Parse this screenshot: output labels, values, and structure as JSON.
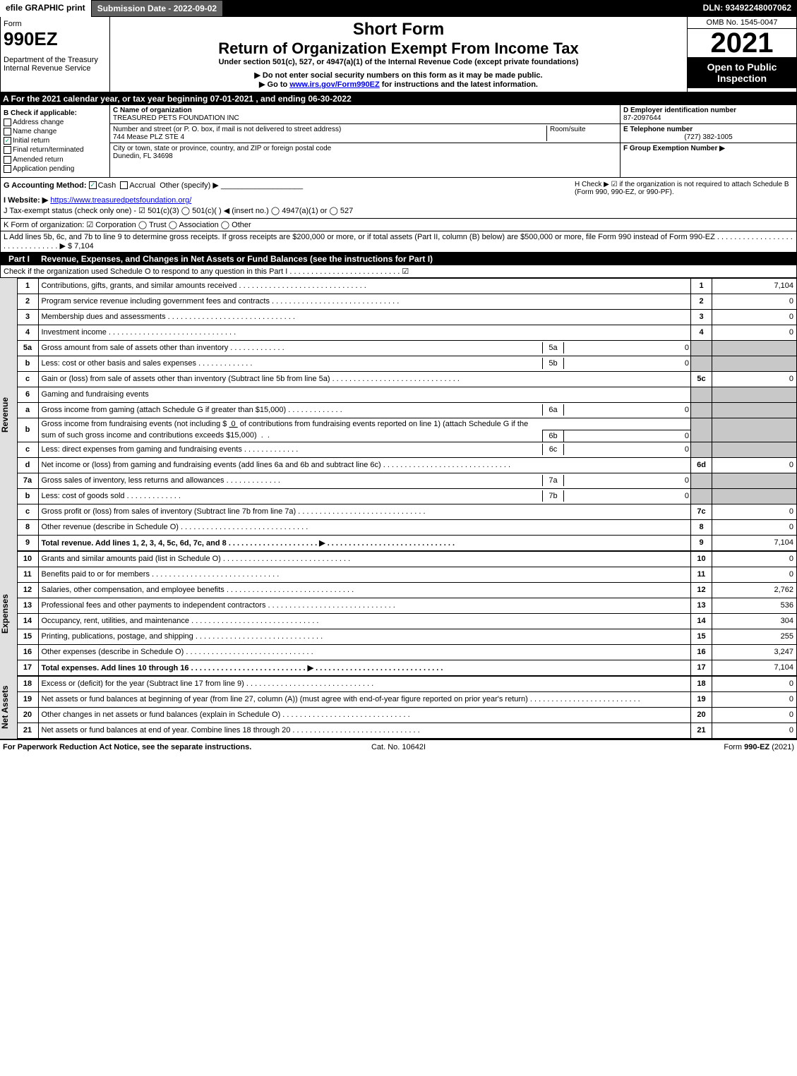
{
  "topbar": {
    "efile": "efile GRAPHIC print",
    "subdate": "Submission Date - 2022-09-02",
    "dln": "DLN: 93492248007062"
  },
  "header": {
    "form": "Form",
    "formnum": "990EZ",
    "dept": "Department of the Treasury\nInternal Revenue Service",
    "short": "Short Form",
    "title": "Return of Organization Exempt From Income Tax",
    "subtitle": "Under section 501(c), 527, or 4947(a)(1) of the Internal Revenue Code (except private foundations)",
    "instr1": "▶ Do not enter social security numbers on this form as it may be made public.",
    "instr2": "▶ Go to www.irs.gov/Form990EZ for instructions and the latest information.",
    "omb": "OMB No. 1545-0047",
    "year": "2021",
    "open": "Open to Public Inspection"
  },
  "sectionA": "A  For the 2021 calendar year, or tax year beginning 07-01-2021 , and ending 06-30-2022",
  "B": {
    "label": "B  Check if applicable:",
    "items": [
      {
        "label": "Address change",
        "checked": false
      },
      {
        "label": "Name change",
        "checked": false
      },
      {
        "label": "Initial return",
        "checked": true
      },
      {
        "label": "Final return/terminated",
        "checked": false
      },
      {
        "label": "Amended return",
        "checked": false
      },
      {
        "label": "Application pending",
        "checked": false
      }
    ]
  },
  "C": {
    "nameLabel": "C Name of organization",
    "name": "TREASURED PETS FOUNDATION INC",
    "addrLabel": "Number and street (or P. O. box, if mail is not delivered to street address)",
    "roomLabel": "Room/suite",
    "addr": "744 Mease PLZ STE 4",
    "cityLabel": "City or town, state or province, country, and ZIP or foreign postal code",
    "city": "Dunedin, FL  34698"
  },
  "D": {
    "label": "D Employer identification number",
    "val": "87-2097644"
  },
  "E": {
    "label": "E Telephone number",
    "val": "(727) 382-1005"
  },
  "F": {
    "label": "F Group Exemption Number  ▶",
    "val": ""
  },
  "G": {
    "label": "G Accounting Method:",
    "cash": "Cash",
    "accrual": "Accrual",
    "other": "Other (specify) ▶"
  },
  "H": {
    "text": "H  Check ▶ ☑ if the organization is not required to attach Schedule B (Form 990, 990-EZ, or 990-PF)."
  },
  "I": {
    "label": "I Website: ▶",
    "url": "https://www.treasuredpetsfoundation.org/"
  },
  "J": {
    "label": "J Tax-exempt status (check only one) - ☑ 501(c)(3)  ◯ 501(c)( ) ◀ (insert no.)  ◯ 4947(a)(1) or  ◯ 527"
  },
  "K": {
    "label": "K Form of organization:  ☑ Corporation   ◯ Trust   ◯ Association   ◯ Other"
  },
  "L": {
    "text": "L Add lines 5b, 6c, and 7b to line 9 to determine gross receipts. If gross receipts are $200,000 or more, or if total assets (Part II, column (B) below) are $500,000 or more, file Form 990 instead of Form 990-EZ . . . . . . . . . . . . . . . . . . . . . . . . . . . . . . .  ▶ $ 7,104"
  },
  "partI": {
    "label": "Part I",
    "title": "Revenue, Expenses, and Changes in Net Assets or Fund Balances (see the instructions for Part I)",
    "check": "Check if the organization used Schedule O to respond to any question in this Part I . . . . . . . . . . . . . . . . . . . . . . . . . .  ☑"
  },
  "revenueLabel": "Revenue",
  "expensesLabel": "Expenses",
  "netassetsLabel": "Net Assets",
  "lines": {
    "l1": {
      "n": "1",
      "d": "Contributions, gifts, grants, and similar amounts received",
      "rn": "1",
      "amt": "7,104"
    },
    "l2": {
      "n": "2",
      "d": "Program service revenue including government fees and contracts",
      "rn": "2",
      "amt": "0"
    },
    "l3": {
      "n": "3",
      "d": "Membership dues and assessments",
      "rn": "3",
      "amt": "0"
    },
    "l4": {
      "n": "4",
      "d": "Investment income",
      "rn": "4",
      "amt": "0"
    },
    "l5a": {
      "n": "5a",
      "d": "Gross amount from sale of assets other than inventory",
      "sn": "5a",
      "samt": "0"
    },
    "l5b": {
      "n": "b",
      "d": "Less: cost or other basis and sales expenses",
      "sn": "5b",
      "samt": "0"
    },
    "l5c": {
      "n": "c",
      "d": "Gain or (loss) from sale of assets other than inventory (Subtract line 5b from line 5a)",
      "rn": "5c",
      "amt": "0"
    },
    "l6": {
      "n": "6",
      "d": "Gaming and fundraising events"
    },
    "l6a": {
      "n": "a",
      "d": "Gross income from gaming (attach Schedule G if greater than $15,000)",
      "sn": "6a",
      "samt": "0"
    },
    "l6b": {
      "n": "b",
      "d": "Gross income from fundraising events (not including $ _0_ of contributions from fundraising events reported on line 1) (attach Schedule G if the sum of such gross income and contributions exceeds $15,000)",
      "sn": "6b",
      "samt": "0"
    },
    "l6c": {
      "n": "c",
      "d": "Less: direct expenses from gaming and fundraising events",
      "sn": "6c",
      "samt": "0"
    },
    "l6d": {
      "n": "d",
      "d": "Net income or (loss) from gaming and fundraising events (add lines 6a and 6b and subtract line 6c)",
      "rn": "6d",
      "amt": "0"
    },
    "l7a": {
      "n": "7a",
      "d": "Gross sales of inventory, less returns and allowances",
      "sn": "7a",
      "samt": "0"
    },
    "l7b": {
      "n": "b",
      "d": "Less: cost of goods sold",
      "sn": "7b",
      "samt": "0"
    },
    "l7c": {
      "n": "c",
      "d": "Gross profit or (loss) from sales of inventory (Subtract line 7b from line 7a)",
      "rn": "7c",
      "amt": "0"
    },
    "l8": {
      "n": "8",
      "d": "Other revenue (describe in Schedule O)",
      "rn": "8",
      "amt": "0"
    },
    "l9": {
      "n": "9",
      "d": "Total revenue. Add lines 1, 2, 3, 4, 5c, 6d, 7c, and 8  . . . . . . . . . . . . . . . . . . . . .  ▶",
      "rn": "9",
      "amt": "7,104"
    },
    "l10": {
      "n": "10",
      "d": "Grants and similar amounts paid (list in Schedule O)",
      "rn": "10",
      "amt": "0"
    },
    "l11": {
      "n": "11",
      "d": "Benefits paid to or for members",
      "rn": "11",
      "amt": "0"
    },
    "l12": {
      "n": "12",
      "d": "Salaries, other compensation, and employee benefits",
      "rn": "12",
      "amt": "2,762"
    },
    "l13": {
      "n": "13",
      "d": "Professional fees and other payments to independent contractors",
      "rn": "13",
      "amt": "536"
    },
    "l14": {
      "n": "14",
      "d": "Occupancy, rent, utilities, and maintenance",
      "rn": "14",
      "amt": "304"
    },
    "l15": {
      "n": "15",
      "d": "Printing, publications, postage, and shipping",
      "rn": "15",
      "amt": "255"
    },
    "l16": {
      "n": "16",
      "d": "Other expenses (describe in Schedule O)",
      "rn": "16",
      "amt": "3,247"
    },
    "l17": {
      "n": "17",
      "d": "Total expenses. Add lines 10 through 16  . . . . . . . . . . . . . . . . . . . . . . . . . . .  ▶",
      "rn": "17",
      "amt": "7,104"
    },
    "l18": {
      "n": "18",
      "d": "Excess or (deficit) for the year (Subtract line 17 from line 9)",
      "rn": "18",
      "amt": "0"
    },
    "l19": {
      "n": "19",
      "d": "Net assets or fund balances at beginning of year (from line 27, column (A)) (must agree with end-of-year figure reported on prior year's return)",
      "rn": "19",
      "amt": "0"
    },
    "l20": {
      "n": "20",
      "d": "Other changes in net assets or fund balances (explain in Schedule O)",
      "rn": "20",
      "amt": "0"
    },
    "l21": {
      "n": "21",
      "d": "Net assets or fund balances at end of year. Combine lines 18 through 20",
      "rn": "21",
      "amt": "0"
    }
  },
  "footer": {
    "left": "For Paperwork Reduction Act Notice, see the separate instructions.",
    "mid": "Cat. No. 10642I",
    "right": "Form 990-EZ (2021)"
  }
}
